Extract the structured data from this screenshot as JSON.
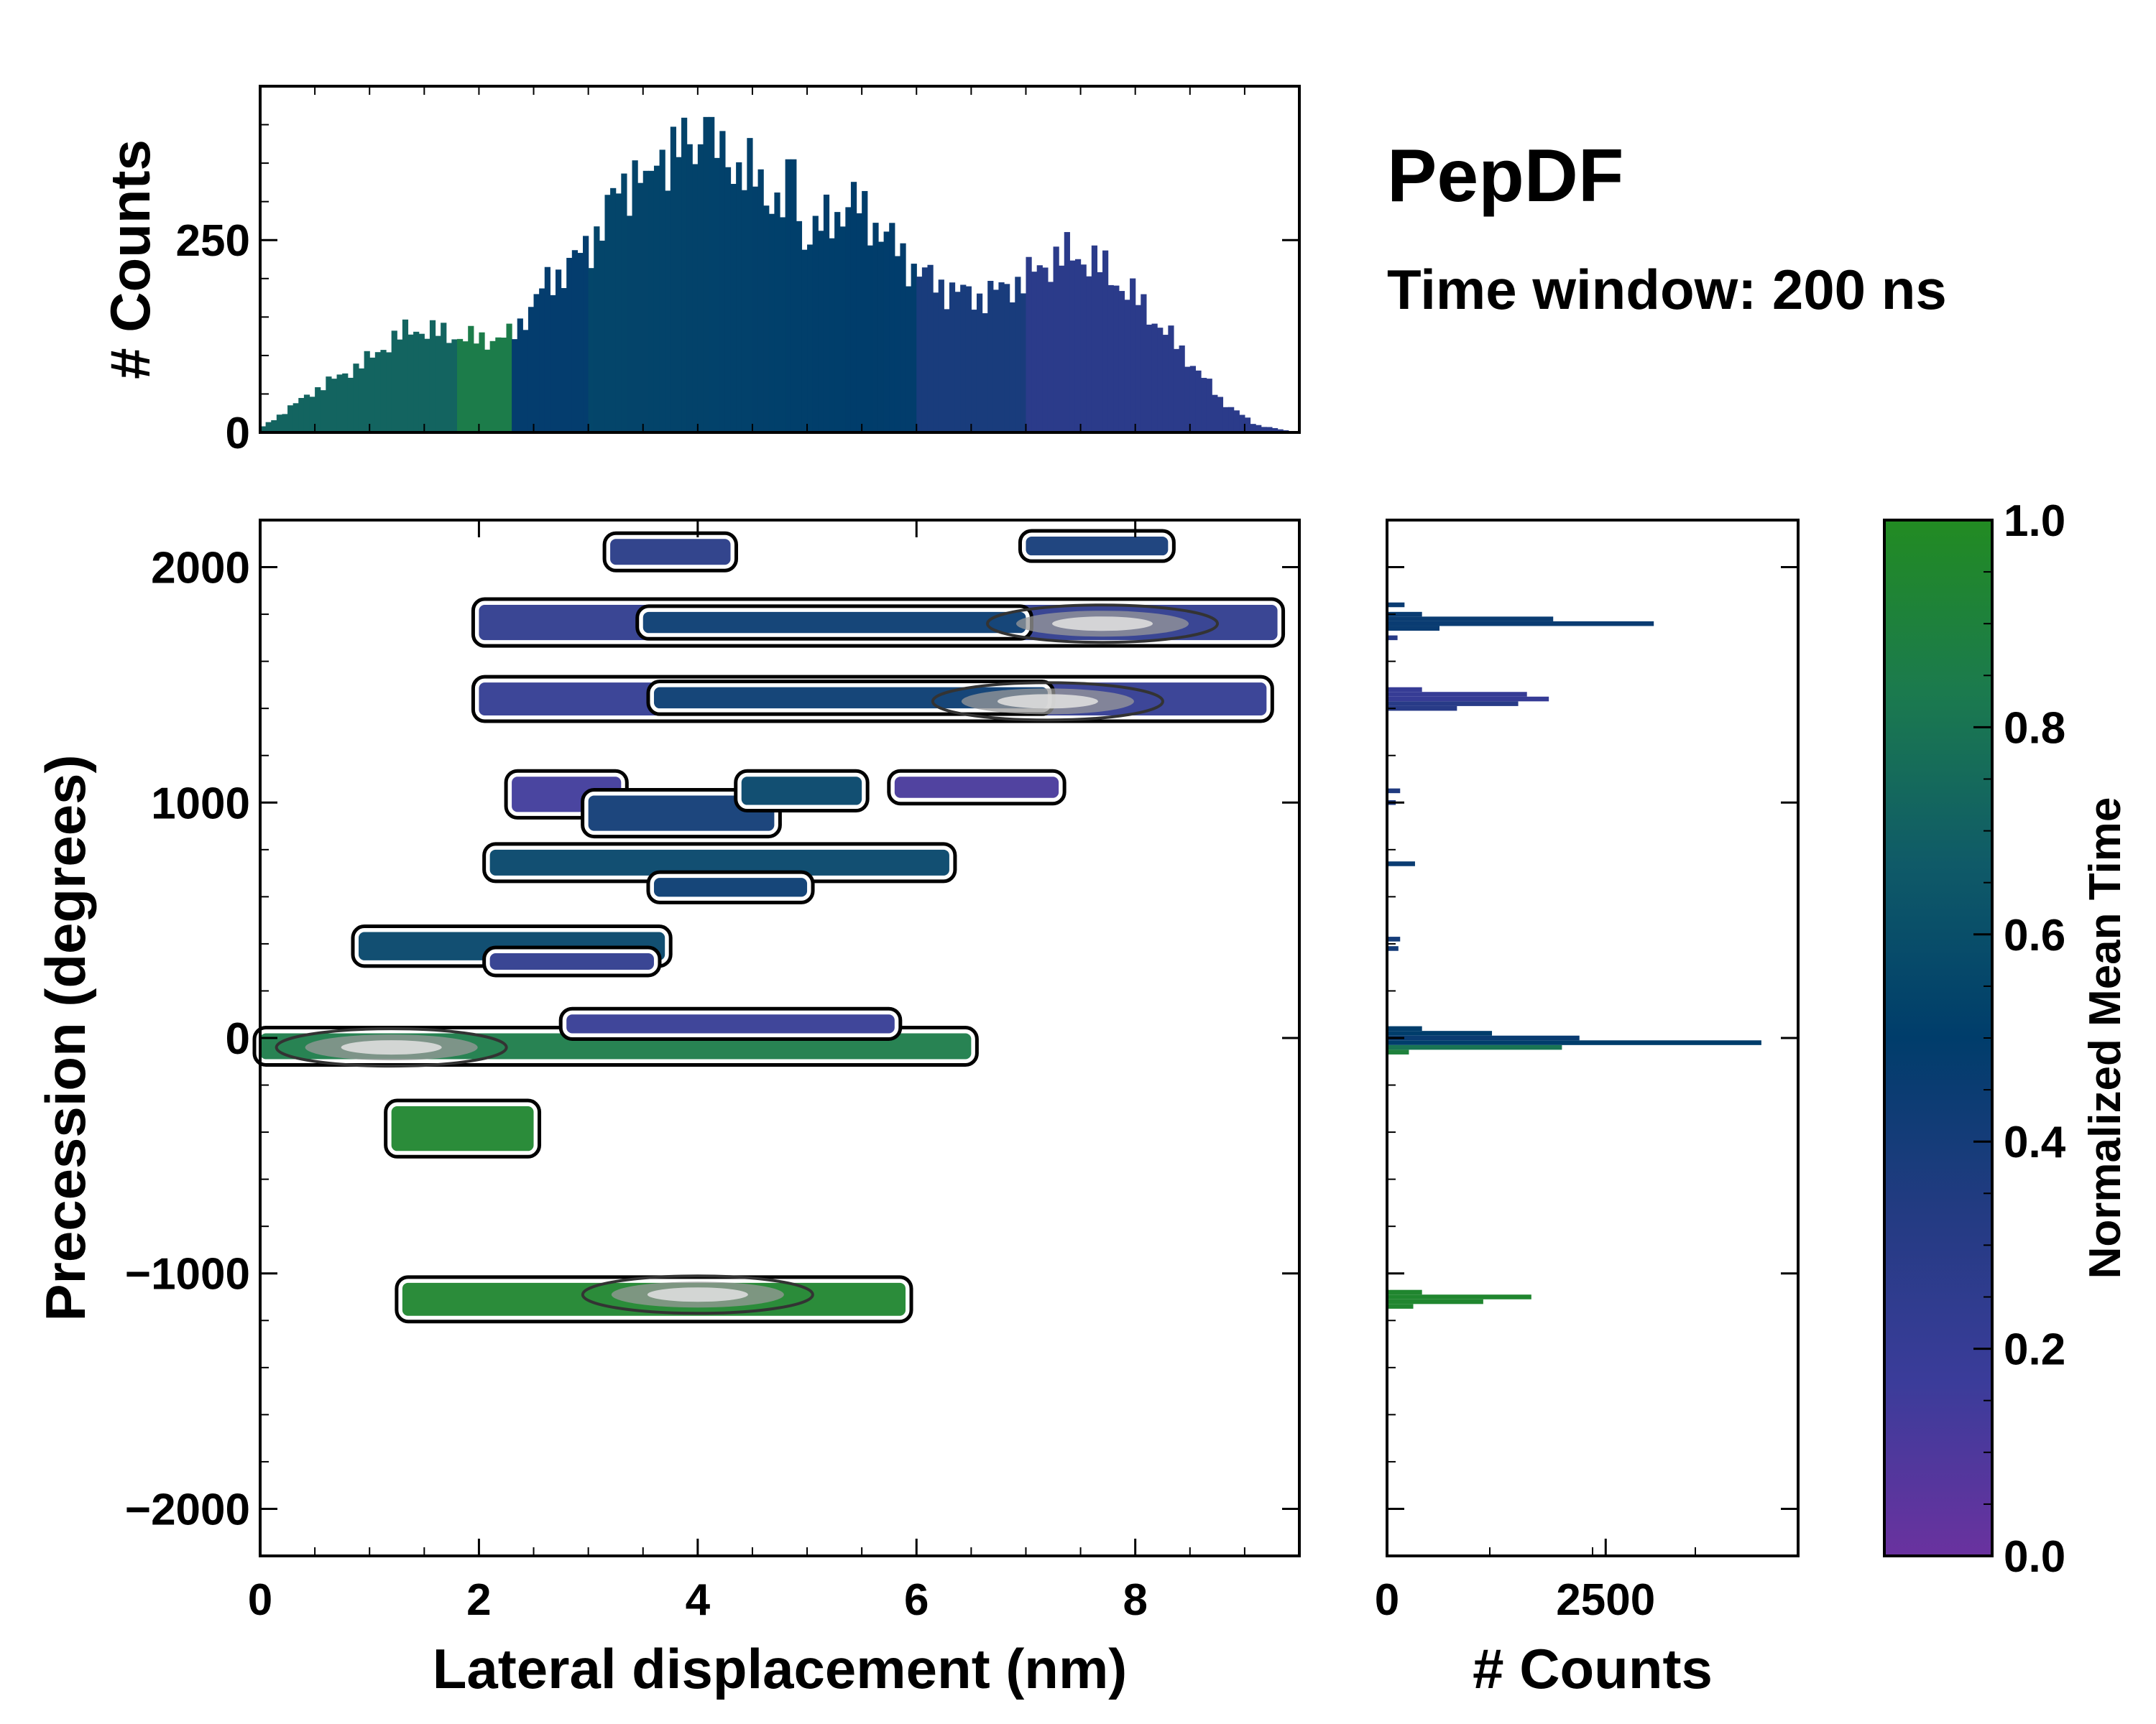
{
  "title": "PepDF",
  "subtitle": "Time window: 200 ns",
  "chart_data": [
    {
      "id": "top-histogram",
      "type": "bar",
      "xlabel": "",
      "ylabel": "# Counts",
      "xlim": [
        0,
        9.5
      ],
      "ylim": [
        0,
        450
      ],
      "yticks": [
        0,
        250
      ],
      "ytick_labels": [
        "0",
        "250"
      ],
      "bin_width": 0.05,
      "profile_x": [
        0,
        0.2,
        0.5,
        1.0,
        1.2,
        1.4,
        1.6,
        2.0,
        2.3,
        2.6,
        3.0,
        3.3,
        3.6,
        4.0,
        4.3,
        4.6,
        5.0,
        5.2,
        5.4,
        5.6,
        6.0,
        6.3,
        6.6,
        7.0,
        7.3,
        7.6,
        8.0,
        8.4,
        8.8,
        9.1,
        9.4
      ],
      "profile_y": [
        5,
        25,
        55,
        95,
        120,
        135,
        130,
        120,
        125,
        190,
        240,
        320,
        360,
        375,
        355,
        320,
        255,
        275,
        300,
        275,
        210,
        185,
        175,
        200,
        230,
        225,
        175,
        110,
        40,
        10,
        2
      ],
      "spikes": [
        {
          "x": 4.1,
          "value": 410
        },
        {
          "x": 4.85,
          "value": 355
        },
        {
          "x": 3.55,
          "value": 340
        },
        {
          "x": 2.62,
          "value": 215
        }
      ],
      "color_by_mean_time": true
    },
    {
      "id": "main-heatmap",
      "type": "heatmap",
      "xlabel": "Lateral displacement (nm)",
      "ylabel": "Precession (degrees)",
      "xlim": [
        0,
        9.5
      ],
      "ylim": [
        -2200,
        2200
      ],
      "xticks": [
        0,
        2,
        4,
        6,
        8
      ],
      "xtick_labels": [
        "0",
        "2",
        "4",
        "6",
        "8"
      ],
      "yticks": [
        -2000,
        -1000,
        0,
        1000,
        2000
      ],
      "ytick_labels": [
        "−2000",
        "−1000",
        "0",
        "1000",
        "2000"
      ],
      "regions": [
        {
          "x0": 2.0,
          "x1": 9.3,
          "y0": 1690,
          "y1": 1840,
          "mean_time": 0.25
        },
        {
          "x0": 3.5,
          "x1": 7.0,
          "y0": 1720,
          "y1": 1810,
          "mean_time": 0.45
        },
        {
          "x0": 2.0,
          "x1": 9.2,
          "y0": 1370,
          "y1": 1510,
          "mean_time": 0.22
        },
        {
          "x0": 3.6,
          "x1": 7.2,
          "y0": 1400,
          "y1": 1490,
          "mean_time": 0.45
        },
        {
          "x0": 3.2,
          "x1": 4.3,
          "y0": 2010,
          "y1": 2120,
          "mean_time": 0.3
        },
        {
          "x0": 7.0,
          "x1": 8.3,
          "y0": 2050,
          "y1": 2130,
          "mean_time": 0.4
        },
        {
          "x0": 2.3,
          "x1": 3.3,
          "y0": 960,
          "y1": 1110,
          "mean_time": 0.15
        },
        {
          "x0": 3.0,
          "x1": 4.7,
          "y0": 880,
          "y1": 1030,
          "mean_time": 0.42
        },
        {
          "x0": 4.4,
          "x1": 5.5,
          "y0": 990,
          "y1": 1110,
          "mean_time": 0.55
        },
        {
          "x0": 5.8,
          "x1": 7.3,
          "y0": 1020,
          "y1": 1110,
          "mean_time": 0.12
        },
        {
          "x0": 2.1,
          "x1": 6.3,
          "y0": 690,
          "y1": 800,
          "mean_time": 0.55
        },
        {
          "x0": 3.6,
          "x1": 5.0,
          "y0": 600,
          "y1": 680,
          "mean_time": 0.45
        },
        {
          "x0": 0.9,
          "x1": 3.7,
          "y0": 330,
          "y1": 450,
          "mean_time": 0.55
        },
        {
          "x0": 2.1,
          "x1": 3.6,
          "y0": 290,
          "y1": 360,
          "mean_time": 0.25
        },
        {
          "x0": 0.0,
          "x1": 6.5,
          "y0": -90,
          "y1": 20,
          "mean_time": 0.85
        },
        {
          "x0": 2.8,
          "x1": 5.8,
          "y0": 20,
          "y1": 100,
          "mean_time": 0.2
        },
        {
          "x0": 1.2,
          "x1": 2.5,
          "y0": -480,
          "y1": -290,
          "mean_time": 0.95
        },
        {
          "x0": 1.3,
          "x1": 5.9,
          "y0": -1180,
          "y1": -1040,
          "mean_time": 0.95
        }
      ],
      "density_peaks": [
        {
          "x": 7.7,
          "y": 1760,
          "label": "peak"
        },
        {
          "x": 7.2,
          "y": 1430,
          "label": "peak"
        },
        {
          "x": 1.2,
          "y": -40,
          "label": "peak"
        },
        {
          "x": 4.0,
          "y": -1090,
          "label": "peak"
        }
      ]
    },
    {
      "id": "right-histogram",
      "type": "bar",
      "orientation": "horizontal",
      "xlabel": "# Counts",
      "ylabel": "",
      "xlim": [
        0,
        4700
      ],
      "ylim": [
        -2200,
        2200
      ],
      "xticks": [
        0,
        2500
      ],
      "xtick_labels": [
        "0",
        "2500"
      ],
      "bars": [
        {
          "y": 1840,
          "value": 200,
          "mean_time": 0.45
        },
        {
          "y": 1800,
          "value": 400,
          "mean_time": 0.45
        },
        {
          "y": 1780,
          "value": 1900,
          "mean_time": 0.45
        },
        {
          "y": 1760,
          "value": 3050,
          "mean_time": 0.45
        },
        {
          "y": 1740,
          "value": 600,
          "mean_time": 0.45
        },
        {
          "y": 1700,
          "value": 120,
          "mean_time": 0.3
        },
        {
          "y": 1480,
          "value": 400,
          "mean_time": 0.2
        },
        {
          "y": 1460,
          "value": 1600,
          "mean_time": 0.2
        },
        {
          "y": 1440,
          "value": 1850,
          "mean_time": 0.2
        },
        {
          "y": 1420,
          "value": 1500,
          "mean_time": 0.3
        },
        {
          "y": 1400,
          "value": 800,
          "mean_time": 0.3
        },
        {
          "y": 1050,
          "value": 150,
          "mean_time": 0.35
        },
        {
          "y": 1000,
          "value": 100,
          "mean_time": 0.35
        },
        {
          "y": 740,
          "value": 320,
          "mean_time": 0.45
        },
        {
          "y": 420,
          "value": 150,
          "mean_time": 0.4
        },
        {
          "y": 380,
          "value": 130,
          "mean_time": 0.4
        },
        {
          "y": 40,
          "value": 400,
          "mean_time": 0.5
        },
        {
          "y": 20,
          "value": 1200,
          "mean_time": 0.5
        },
        {
          "y": 0,
          "value": 2200,
          "mean_time": 0.45
        },
        {
          "y": -20,
          "value": 4280,
          "mean_time": 0.5
        },
        {
          "y": -40,
          "value": 2000,
          "mean_time": 0.8
        },
        {
          "y": -60,
          "value": 250,
          "mean_time": 0.9
        },
        {
          "y": -1080,
          "value": 400,
          "mean_time": 0.95
        },
        {
          "y": -1100,
          "value": 1650,
          "mean_time": 0.95
        },
        {
          "y": -1120,
          "value": 1100,
          "mean_time": 0.95
        },
        {
          "y": -1140,
          "value": 300,
          "mean_time": 0.95
        }
      ]
    },
    {
      "id": "colorbar",
      "type": "colorbar",
      "label": "Normalized Mean Time",
      "range": [
        0.0,
        1.0
      ],
      "ticks": [
        0.0,
        0.2,
        0.4,
        0.6,
        0.8,
        1.0
      ],
      "tick_labels": [
        "0.0",
        "0.2",
        "0.4",
        "0.6",
        "0.8",
        "1.0"
      ],
      "colors": [
        "#6a329f",
        "#3b3c9a",
        "#233b82",
        "#003d6b",
        "#0f5a68",
        "#1b7a4e",
        "#228b22"
      ]
    }
  ]
}
